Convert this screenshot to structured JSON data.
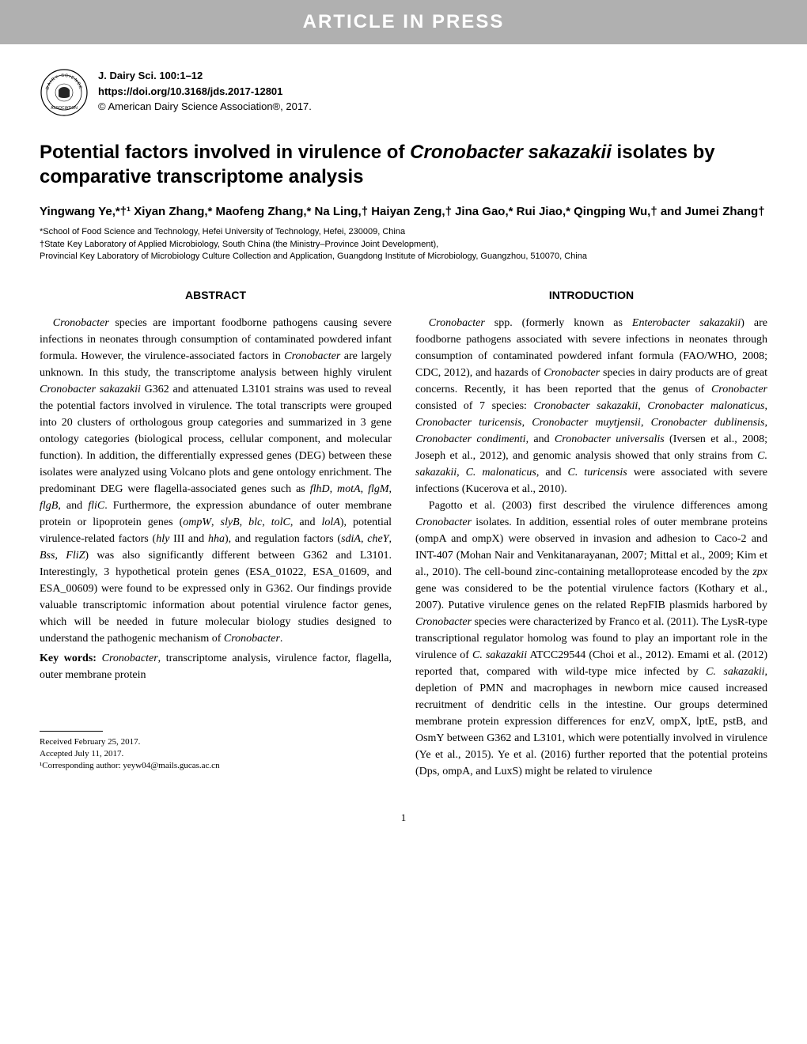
{
  "banner": "ARTICLE IN PRESS",
  "journal": {
    "citation": "J. Dairy Sci. 100:1–12",
    "doi": "https://doi.org/10.3168/jds.2017-12801",
    "copyright": "© American Dairy Science Association®, 2017."
  },
  "title_part1": "Potential factors involved in virulence of ",
  "title_italic": "Cronobacter sakazakii",
  "title_part2": " isolates by comparative transcriptome analysis",
  "authors": "Yingwang Ye,*†¹ Xiyan Zhang,* Maofeng Zhang,* Na Ling,† Haiyan Zeng,† Jina Gao,* Rui Jiao,* Qingping Wu,† and Jumei Zhang†",
  "affiliations": {
    "line1": "*School of Food Science and Technology, Hefei University of Technology, Hefei, 230009, China",
    "line2": "†State Key Laboratory of Applied Microbiology, South China (the Ministry–Province Joint Development),",
    "line3": "Provincial Key Laboratory of Microbiology Culture Collection and Application, Guangdong Institute of Microbiology, Guangzhou, 510070, China"
  },
  "abstract": {
    "heading": "ABSTRACT",
    "body_html": "<span class=\"italic\">Cronobacter</span> species are important foodborne pathogens causing severe infections in neonates through consumption of contaminated powdered infant formula. However, the virulence-associated factors in <span class=\"italic\">Cronobacter</span> are largely unknown. In this study, the transcriptome analysis between highly virulent <span class=\"italic\">Cronobacter sakazakii</span> G362 and attenuated L3101 strains was used to reveal the potential factors involved in virulence. The total transcripts were grouped into 20 clusters of orthologous group categories and summarized in 3 gene ontology categories (biological process, cellular component, and molecular function). In addition, the differentially expressed genes (DEG) between these isolates were analyzed using Volcano plots and gene ontology enrichment. The predominant DEG were flagella-associated genes such as <span class=\"italic\">flhD</span>, <span class=\"italic\">motA</span>, <span class=\"italic\">flgM</span>, <span class=\"italic\">flgB</span>, and <span class=\"italic\">fliC</span>. Furthermore, the expression abundance of outer membrane protein or lipoprotein genes (<span class=\"italic\">ompW</span>, <span class=\"italic\">slyB</span>, <span class=\"italic\">blc</span>, <span class=\"italic\">tolC</span>, and <span class=\"italic\">lolA</span>), potential virulence-related factors (<span class=\"italic\">hly</span> III and <span class=\"italic\">hha</span>), and regulation factors (<span class=\"italic\">sdiA</span>, <span class=\"italic\">cheY</span>, <span class=\"italic\">Bss</span>, <span class=\"italic\">FliZ</span>) was also significantly different between G362 and L3101. Interestingly, 3 hypothetical protein genes (ESA_01022, ESA_01609, and ESA_00609) were found to be expressed only in G362. Our findings provide valuable transcriptomic information about potential virulence factor genes, which will be needed in future molecular biology studies designed to understand the pathogenic mechanism of <span class=\"italic\">Cronobacter</span>.",
    "keywords_html": "<b>Key words:</b> <span class=\"italic\">Cronobacter</span>, transcriptome analysis, virulence factor, flagella, outer membrane protein"
  },
  "introduction": {
    "heading": "INTRODUCTION",
    "para1_html": "<span class=\"italic\">Cronobacter</span> spp. (formerly known as <span class=\"italic\">Enterobacter sakazakii</span>) are foodborne pathogens associated with severe infections in neonates through consumption of contaminated powdered infant formula (FAO/WHO, 2008; CDC, 2012), and hazards of <span class=\"italic\">Cronobacter</span> species in dairy products are of great concerns. Recently, it has been reported that the genus of <span class=\"italic\">Cronobacter</span> consisted of 7 species: <span class=\"italic\">Cronobacter sakazakii</span>, <span class=\"italic\">Cronobacter malonaticus</span>, <span class=\"italic\">Cronobacter turicensis</span>, <span class=\"italic\">Cronobacter muytjensii</span>, <span class=\"italic\">Cronobacter dublinensis</span>, <span class=\"italic\">Cronobacter condimenti</span>, and <span class=\"italic\">Cronobacter universalis</span> (Iversen et al., 2008; Joseph et al., 2012), and genomic analysis showed that only strains from <span class=\"italic\">C. sakazakii</span>, <span class=\"italic\">C. malonaticus</span>, and <span class=\"italic\">C. turicensis</span> were associated with severe infections (Kucerova et al., 2010).",
    "para2_html": "Pagotto et al. (2003) first described the virulence differences among <span class=\"italic\">Cronobacter</span> isolates. In addition, essential roles of outer membrane proteins (ompA and ompX) were observed in invasion and adhesion to Caco-2 and INT-407 (Mohan Nair and Venkitanarayanan, 2007; Mittal et al., 2009; Kim et al., 2010). The cell-bound zinc-containing metalloprotease encoded by the <span class=\"italic\">zpx</span> gene was considered to be the potential virulence factors (Kothary et al., 2007). Putative virulence genes on the related RepFIB plasmids harbored by <span class=\"italic\">Cronobacter</span> species were characterized by Franco et al. (2011). The LysR-type transcriptional regulator homolog was found to play an important role in the virulence of <span class=\"italic\">C. sakazakii</span> ATCC29544 (Choi et al., 2012). Emami et al. (2012) reported that, compared with wild-type mice infected by <span class=\"italic\">C. sakazakii</span>, depletion of PMN and macrophages in newborn mice caused increased recruitment of dendritic cells in the intestine. Our groups determined membrane protein expression differences for enzV, ompX, lptE, pstB, and OsmY between G362 and L3101, which were potentially involved in virulence (Ye et al., 2015). Ye et al. (2016) further reported that the potential proteins (Dps, ompA, and LuxS) might be related to virulence"
  },
  "footer": {
    "received": "Received February 25, 2017.",
    "accepted": "Accepted July 11, 2017.",
    "corresponding": "¹Corresponding author: yeyw04@mails.gucas.ac.cn"
  },
  "page_number": "1",
  "colors": {
    "banner_bg": "#b0b0b0",
    "banner_text": "#ffffff",
    "body_text": "#000000"
  }
}
